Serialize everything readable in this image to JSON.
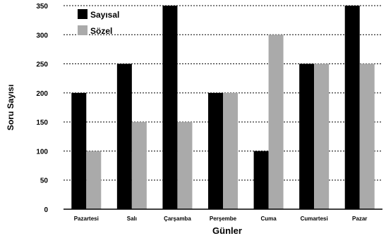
{
  "chart_data": {
    "type": "bar",
    "categories": [
      "Pazartesi",
      "Salı",
      "Çarşamba",
      "Perşembe",
      "Cuma",
      "Cumartesi",
      "Pazar"
    ],
    "series": [
      {
        "name": "Sayısal",
        "color": "#000000",
        "values": [
          200,
          250,
          350,
          200,
          100,
          250,
          350
        ]
      },
      {
        "name": "Sözel",
        "color": "#aaaaaa",
        "values": [
          100,
          150,
          150,
          200,
          300,
          250,
          250
        ]
      }
    ],
    "title": "",
    "xlabel": "Günler",
    "ylabel": "Soru Sayısı",
    "ylim": [
      0,
      350
    ],
    "yticks": [
      0,
      50,
      100,
      150,
      200,
      250,
      300,
      350
    ],
    "grid": "horizontal-dotted",
    "legend_position": "top-left"
  }
}
